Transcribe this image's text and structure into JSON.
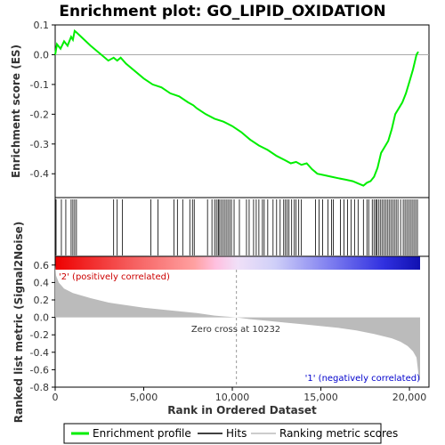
{
  "chart_data": {
    "type": "line",
    "title": "Enrichment plot: GO_LIPID_OXIDATION",
    "top_panel": {
      "ylabel": "Enrichment score (ES)",
      "ylim": [
        -0.48,
        0.1
      ],
      "yticks": [
        0.1,
        0.0,
        -0.1,
        -0.2,
        -0.3,
        -0.4
      ],
      "ytick_labels": [
        "0.1",
        "0.0",
        "-0.1",
        "-0.2",
        "-0.3",
        "-0.4"
      ],
      "series": {
        "name": "Enrichment profile",
        "color": "#00ee00",
        "x": [
          0,
          100,
          300,
          500,
          700,
          900,
          1000,
          1100,
          1200,
          2000,
          3000,
          3300,
          3500,
          3700,
          4000,
          5000,
          5500,
          6000,
          6500,
          7000,
          7500,
          7800,
          8000,
          8500,
          9000,
          9500,
          10000,
          10500,
          11000,
          11500,
          12000,
          12500,
          13000,
          13300,
          13600,
          13900,
          14200,
          14500,
          14800,
          15200,
          15600,
          16000,
          16400,
          16800,
          17200,
          17400,
          17600,
          17800,
          18000,
          18200,
          18400,
          18600,
          18800,
          19000,
          19200,
          19400,
          19600,
          19800,
          20000,
          20200,
          20400,
          20500
        ],
        "y": [
          0.0,
          0.035,
          0.02,
          0.045,
          0.03,
          0.06,
          0.05,
          0.08,
          0.075,
          0.03,
          -0.02,
          -0.01,
          -0.02,
          -0.01,
          -0.03,
          -0.08,
          -0.1,
          -0.11,
          -0.13,
          -0.14,
          -0.16,
          -0.17,
          -0.18,
          -0.2,
          -0.215,
          -0.225,
          -0.24,
          -0.26,
          -0.285,
          -0.305,
          -0.32,
          -0.34,
          -0.355,
          -0.365,
          -0.36,
          -0.37,
          -0.365,
          -0.385,
          -0.4,
          -0.405,
          -0.41,
          -0.415,
          -0.42,
          -0.425,
          -0.435,
          -0.44,
          -0.43,
          -0.425,
          -0.41,
          -0.38,
          -0.33,
          -0.31,
          -0.29,
          -0.25,
          -0.2,
          -0.18,
          -0.16,
          -0.13,
          -0.09,
          -0.05,
          0.0,
          0.01
        ]
      }
    },
    "hits_panel": {
      "hit_positions": [
        50,
        350,
        600,
        900,
        1000,
        1100,
        1200,
        3300,
        3500,
        3800,
        5400,
        5800,
        6700,
        6900,
        7200,
        7600,
        7750,
        7850,
        8600,
        8850,
        9000,
        9100,
        9200,
        9250,
        9350,
        9450,
        9550,
        9650,
        9750,
        9850,
        9950,
        10100,
        10400,
        10800,
        10950,
        11200,
        11350,
        11500,
        11700,
        11800,
        12000,
        12300,
        12500,
        12700,
        12900,
        13000,
        13100,
        13200,
        13350,
        13500,
        13600,
        13750,
        13900,
        14700,
        14900,
        15100,
        15400,
        15600,
        15700,
        16100,
        16300,
        16500,
        16700,
        16900,
        17100,
        17400,
        17600,
        17700,
        17900,
        18000,
        18100,
        18150,
        18250,
        18350,
        18450,
        18550,
        18650,
        18750,
        18850,
        18950,
        19050,
        19150,
        19250,
        19350,
        19500,
        19650,
        19750,
        19850,
        19950,
        20050,
        20150,
        20250,
        20350,
        20450
      ]
    },
    "metric_panel": {
      "ylabel": "Ranked list metric (Signal2Noise)",
      "xlabel": "Rank in Ordered Dataset",
      "ylim": [
        -0.8,
        0.7
      ],
      "yticks": [
        0.6,
        0.4,
        0.2,
        0.0,
        -0.2,
        -0.4,
        -0.6,
        -0.8
      ],
      "ytick_labels": [
        "0.6",
        "0.4",
        "0.2",
        "0.0",
        "-0.2",
        "-0.4",
        "-0.6",
        "-0.8"
      ],
      "xlim": [
        0,
        20600
      ],
      "xticks": [
        0,
        5000,
        10000,
        15000,
        20000
      ],
      "xtick_labels": [
        "0",
        "5,000",
        "10,000",
        "15,000",
        "20,000"
      ],
      "zero_cross": 10232,
      "metric_curve": {
        "x": [
          0,
          50,
          200,
          500,
          1000,
          2000,
          3000,
          4000,
          5000,
          6000,
          7000,
          8000,
          9000,
          10232,
          11000,
          12000,
          13000,
          14000,
          15000,
          16000,
          17000,
          18000,
          19000,
          19500,
          19900,
          20200,
          20400,
          20550,
          20600
        ],
        "y": [
          0.6,
          0.48,
          0.4,
          0.33,
          0.28,
          0.22,
          0.17,
          0.14,
          0.11,
          0.09,
          0.07,
          0.05,
          0.02,
          0.0,
          -0.02,
          -0.04,
          -0.06,
          -0.08,
          -0.1,
          -0.12,
          -0.15,
          -0.19,
          -0.24,
          -0.28,
          -0.33,
          -0.39,
          -0.46,
          -0.72,
          -0.72
        ]
      }
    },
    "annotations": {
      "positive": "'2' (positively correlated)",
      "negative": "'1' (negatively correlated)",
      "zero_cross": "Zero cross at 10232",
      "positive_color": "#cc0000",
      "negative_color": "#0000cc"
    },
    "legend": {
      "placement": "bottom",
      "items": [
        {
          "label": "Enrichment profile",
          "color": "#00ee00",
          "kind": "thick-line"
        },
        {
          "label": "Hits",
          "color": "#000000",
          "kind": "line"
        },
        {
          "label": "Ranking metric scores",
          "color": "#bbbbbb",
          "kind": "line"
        }
      ]
    }
  }
}
